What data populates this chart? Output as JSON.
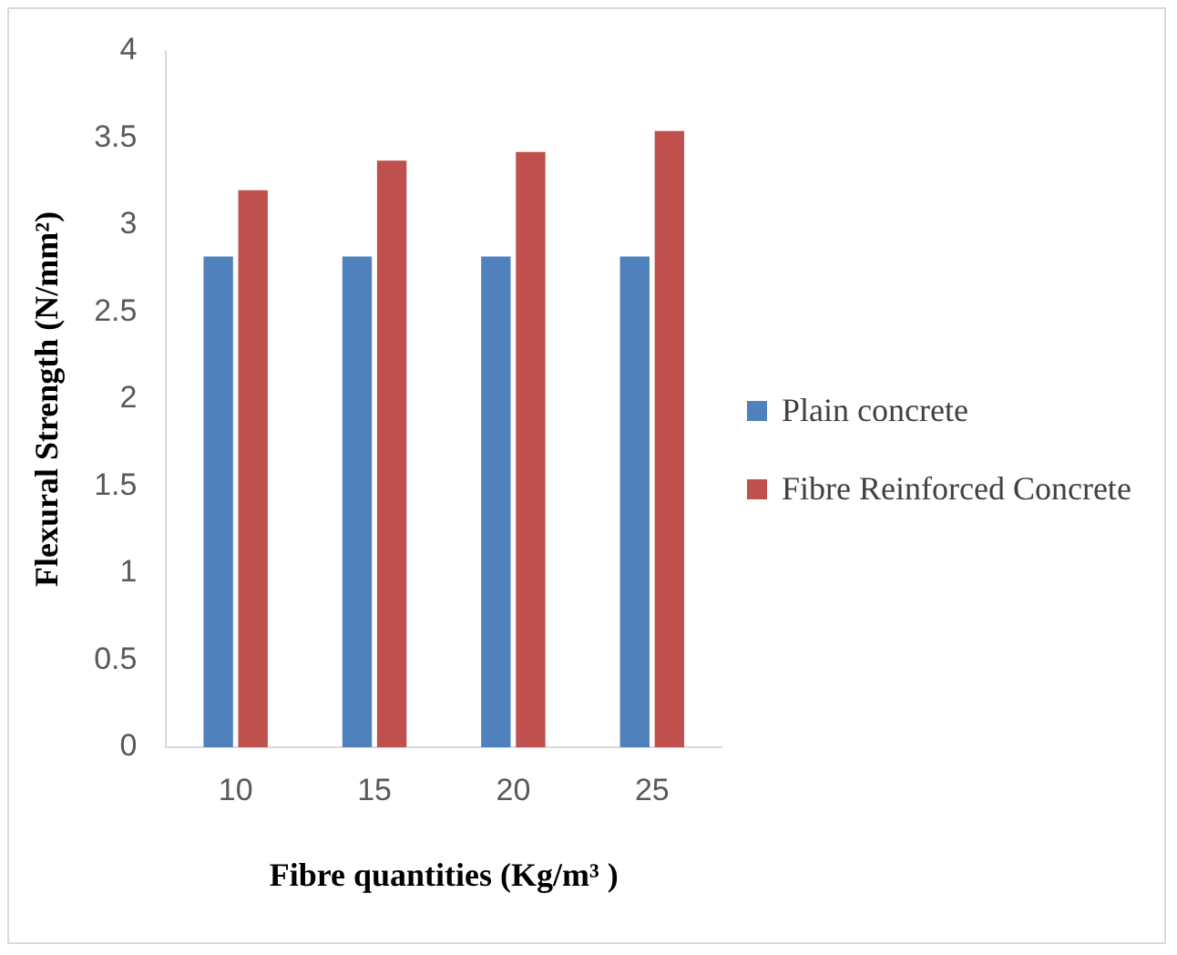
{
  "chart_data": {
    "type": "bar",
    "xlabel": "Fibre quantities (Kg/m³ )",
    "ylabel": "Flexural Strength (N/mm²)",
    "categories": [
      "10",
      "15",
      "20",
      "25"
    ],
    "series": [
      {
        "name": "Plain concrete",
        "color": "#4f81bd",
        "values": [
          2.82,
          2.82,
          2.82,
          2.82
        ]
      },
      {
        "name": "Fibre Reinforced Concrete",
        "color": "#c0504d",
        "values": [
          3.2,
          3.37,
          3.42,
          3.54
        ]
      }
    ],
    "ylim": [
      0,
      4
    ],
    "yticks": [
      0,
      0.5,
      1,
      1.5,
      2,
      2.5,
      3,
      3.5,
      4
    ],
    "grid": false,
    "legend": "right"
  }
}
